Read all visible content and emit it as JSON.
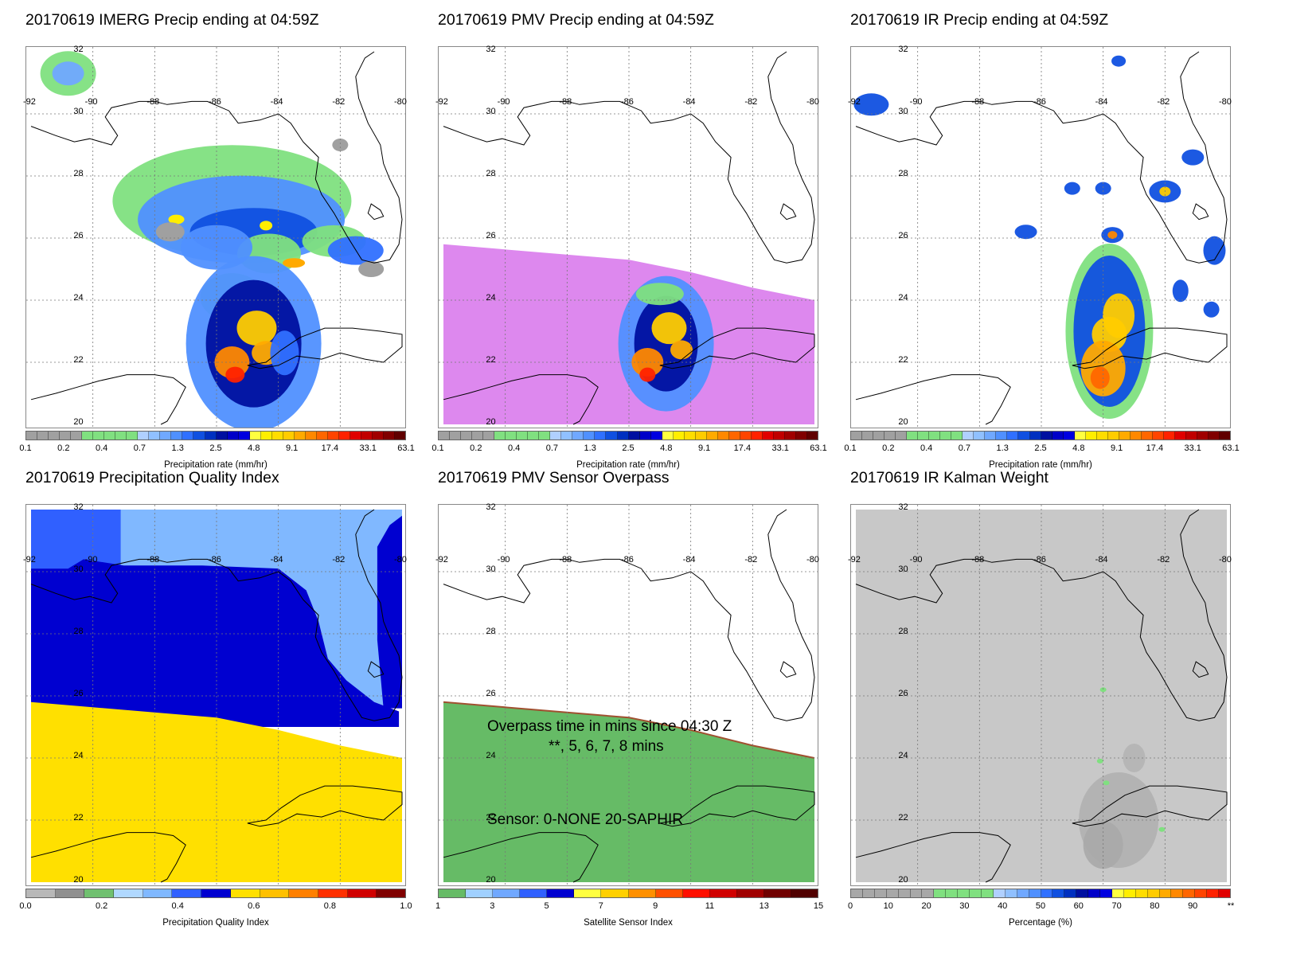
{
  "panels": [
    {
      "id": "imerg",
      "title": "20170619 IMERG Precip ending at 04:59Z",
      "colorbar_label": "Precipitation rate (mm/hr)",
      "colorbar_ticks": [
        "0.1",
        "0.2",
        "0.4",
        "0.7",
        "1.3",
        "2.5",
        "4.8",
        "9.1",
        "17.4",
        "33.1",
        "63.1"
      ],
      "colors": [
        "#a0a0a0",
        "#a0a0a0",
        "#a0a0a0",
        "#a0a0a0",
        "#a0a0a0",
        "#80e080",
        "#80e080",
        "#80e080",
        "#80e080",
        "#80e080",
        "#b0d0ff",
        "#90c0ff",
        "#70a8ff",
        "#5090ff",
        "#3070ff",
        "#1050e0",
        "#0030c0",
        "#0010a0",
        "#0000c8",
        "#0000e0",
        "#ffff40",
        "#ffee00",
        "#ffdd00",
        "#ffcc00",
        "#ffaa00",
        "#ff8800",
        "#ff6600",
        "#ff4400",
        "#ff2200",
        "#e00000",
        "#c00000",
        "#a00000",
        "#800000",
        "#600000"
      ]
    },
    {
      "id": "pmv",
      "title": "20170619 PMV Precip ending at 04:59Z",
      "colorbar_label": "Precipitation rate (mm/hr)",
      "colorbar_ticks": [
        "0.1",
        "0.2",
        "0.4",
        "0.7",
        "1.3",
        "2.5",
        "4.8",
        "9.1",
        "17.4",
        "33.1",
        "63.1"
      ],
      "colors": [
        "#a0a0a0",
        "#a0a0a0",
        "#a0a0a0",
        "#a0a0a0",
        "#a0a0a0",
        "#80e080",
        "#80e080",
        "#80e080",
        "#80e080",
        "#80e080",
        "#b0d0ff",
        "#90c0ff",
        "#70a8ff",
        "#5090ff",
        "#3070ff",
        "#1050e0",
        "#0030c0",
        "#0010a0",
        "#0000c8",
        "#0000e0",
        "#ffff40",
        "#ffee00",
        "#ffdd00",
        "#ffcc00",
        "#ffaa00",
        "#ff8800",
        "#ff6600",
        "#ff4400",
        "#ff2200",
        "#e00000",
        "#c00000",
        "#a00000",
        "#800000",
        "#600000"
      ]
    },
    {
      "id": "ir",
      "title": "20170619 IR Precip ending at 04:59Z",
      "colorbar_label": "Precipitation rate (mm/hr)",
      "colorbar_ticks": [
        "0.1",
        "0.2",
        "0.4",
        "0.7",
        "1.3",
        "2.5",
        "4.8",
        "9.1",
        "17.4",
        "33.1",
        "63.1"
      ],
      "colors": [
        "#a0a0a0",
        "#a0a0a0",
        "#a0a0a0",
        "#a0a0a0",
        "#a0a0a0",
        "#80e080",
        "#80e080",
        "#80e080",
        "#80e080",
        "#80e080",
        "#b0d0ff",
        "#90c0ff",
        "#70a8ff",
        "#5090ff",
        "#3070ff",
        "#1050e0",
        "#0030c0",
        "#0010a0",
        "#0000c8",
        "#0000e0",
        "#ffff40",
        "#ffee00",
        "#ffdd00",
        "#ffcc00",
        "#ffaa00",
        "#ff8800",
        "#ff6600",
        "#ff4400",
        "#ff2200",
        "#e00000",
        "#c00000",
        "#a00000",
        "#800000",
        "#600000"
      ]
    },
    {
      "id": "pqi",
      "title": "20170619 Precipitation Quality Index",
      "colorbar_label": "Precipitation Quality Index",
      "colorbar_ticks": [
        "0.0",
        "0.2",
        "0.4",
        "0.6",
        "0.8",
        "1.0"
      ],
      "colors": [
        "#b8b8b8",
        "#909090",
        "#70c070",
        "#b0d8ff",
        "#80b8ff",
        "#3060ff",
        "#0000d0",
        "#ffe000",
        "#ffc000",
        "#ff8000",
        "#ff3000",
        "#d00000",
        "#800000"
      ]
    },
    {
      "id": "sensor",
      "title": "20170619 PMV Sensor Overpass",
      "colorbar_label": "Satellite Sensor Index",
      "colorbar_ticks": [
        "1",
        "3",
        "5",
        "7",
        "9",
        "11",
        "13",
        "15"
      ],
      "colors": [
        "#66bb66",
        "#a0d0ff",
        "#70a8ff",
        "#3060ff",
        "#0000d0",
        "#ffff40",
        "#ffd000",
        "#ff9000",
        "#ff5000",
        "#ff1000",
        "#d00000",
        "#a00000",
        "#700000",
        "#500000"
      ],
      "overlay_line1": "Overpass time in mins since 04:30 Z",
      "overlay_line2": "**, 5, 6, 7, 8 mins",
      "overlay_line3": "Sensor:   0-NONE 20-SAPHIR"
    },
    {
      "id": "kalman",
      "title": "20170619 IR Kalman Weight",
      "colorbar_label": "Percentage (%)",
      "colorbar_ticks": [
        "0",
        "10",
        "20",
        "30",
        "40",
        "50",
        "60",
        "70",
        "80",
        "90",
        "**"
      ],
      "colors": [
        "#a8a8a8",
        "#a8a8a8",
        "#a8a8a8",
        "#a8a8a8",
        "#a8a8a8",
        "#a8a8a8",
        "#a8a8a8",
        "#80e080",
        "#80e080",
        "#80e080",
        "#80e080",
        "#80e080",
        "#b0d0ff",
        "#90c0ff",
        "#70a8ff",
        "#5090ff",
        "#3070ff",
        "#1050e0",
        "#0030c0",
        "#0010a0",
        "#0000c8",
        "#0000e0",
        "#ffff40",
        "#ffee00",
        "#ffdd00",
        "#ffcc00",
        "#ffaa00",
        "#ff8800",
        "#ff6600",
        "#ff4400",
        "#ff2200",
        "#e00000"
      ]
    }
  ],
  "axes": {
    "lon_labels": [
      "-92",
      "-90",
      "-88",
      "-86",
      "-84",
      "-82",
      "-80"
    ],
    "lat_labels": [
      "32",
      "30",
      "28",
      "26",
      "24",
      "22",
      "20"
    ],
    "lon_range": [
      -92,
      -80
    ],
    "lat_range": [
      20,
      32
    ]
  },
  "fields": {
    "pmv_swath_color": "#dd88ee",
    "sensor_swath_color": "#66bb66",
    "pqi_colors": {
      "low": "#3060ff",
      "mid": "#0000d0",
      "high": "#80b8ff",
      "bottom": "#ffe000"
    },
    "kalman_background": "#c8c8c8"
  }
}
